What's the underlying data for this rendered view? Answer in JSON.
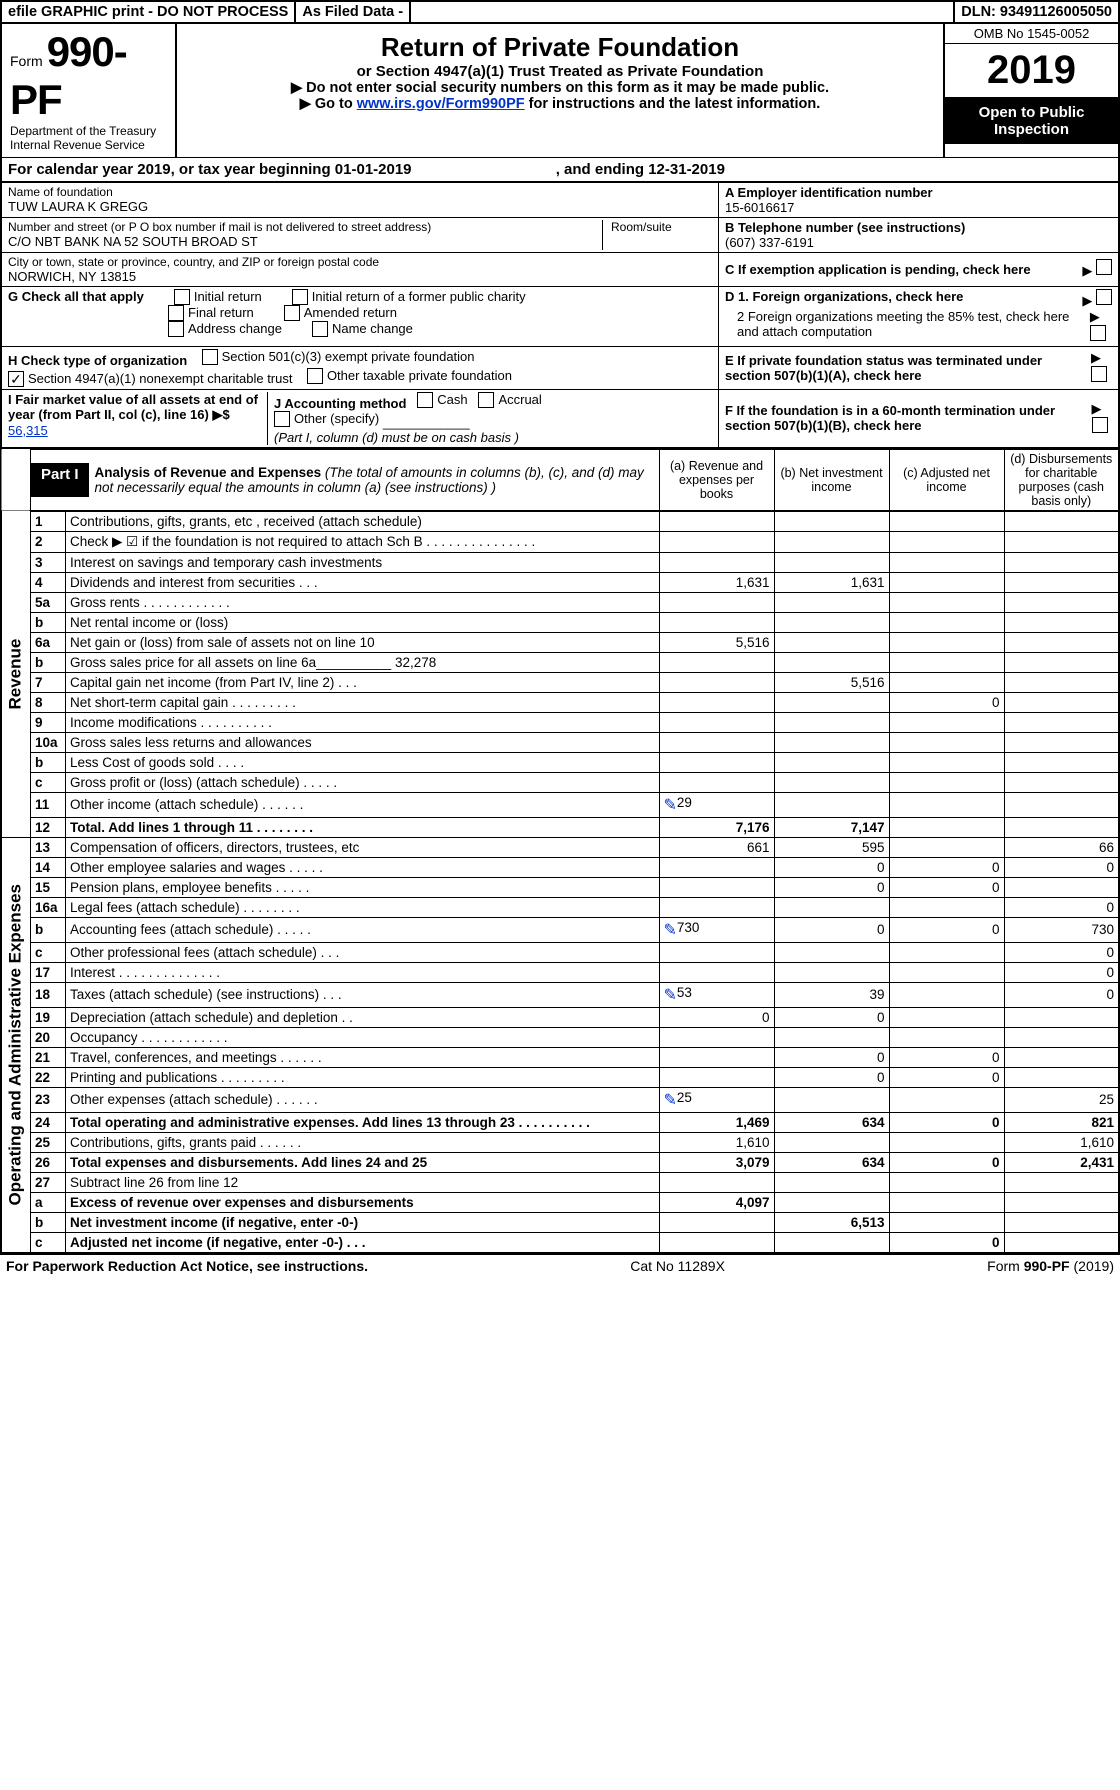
{
  "top": {
    "efile": "efile GRAPHIC print - DO NOT PROCESS",
    "asfiled": "As Filed Data -",
    "dln": "DLN: 93491126005050"
  },
  "header": {
    "form_label": "Form",
    "form_code": "990-PF",
    "dept1": "Department of the Treasury",
    "dept2": "Internal Revenue Service",
    "title": "Return of Private Foundation",
    "subtitle": "or Section 4947(a)(1) Trust Treated as Private Foundation",
    "note1": "▶ Do not enter social security numbers on this form as it may be made public.",
    "note2_pre": "▶ Go to ",
    "note2_link": "www.irs.gov/Form990PF",
    "note2_post": " for instructions and the latest information.",
    "omb": "OMB No 1545-0052",
    "year": "2019",
    "open": "Open to Public Inspection"
  },
  "calyear": {
    "text_a": "For calendar year 2019, or tax year beginning 01-01-2019",
    "text_b": ", and ending 12-31-2019"
  },
  "info": {
    "name_label": "Name of foundation",
    "name": "TUW LAURA K GREGG",
    "ein_label": "A Employer identification number",
    "ein": "15-6016617",
    "addr_label": "Number and street (or P O  box number if mail is not delivered to street address)",
    "addr": "C/O NBT BANK NA 52 SOUTH BROAD ST",
    "room_label": "Room/suite",
    "tel_label": "B Telephone number (see instructions)",
    "tel": "(607) 337-6191",
    "city_label": "City or town, state or province, country, and ZIP or foreign postal code",
    "city": "NORWICH, NY  13815",
    "c_label": "C If exemption application is pending, check here",
    "g_label": "G Check all that apply",
    "g_initial": "Initial return",
    "g_initial_former": "Initial return of a former public charity",
    "g_final": "Final return",
    "g_amended": "Amended return",
    "g_addr": "Address change",
    "g_name": "Name change",
    "d1": "D 1. Foreign organizations, check here",
    "d2": "2 Foreign organizations meeting the 85% test, check here and attach computation",
    "e_label": "E  If private foundation status was terminated under section 507(b)(1)(A), check here",
    "h_label": "H Check type of organization",
    "h_501c3": "Section 501(c)(3) exempt private foundation",
    "h_4947": "Section 4947(a)(1) nonexempt charitable trust",
    "h_other_tax": "Other taxable private foundation",
    "i_label": "I Fair market value of all assets at end of year (from Part II, col  (c), line 16) ▶$ ",
    "i_val": "56,315",
    "j_label": "J Accounting method",
    "j_cash": "Cash",
    "j_accrual": "Accrual",
    "j_other": "Other (specify)",
    "j_note": "(Part I, column (d) must be on cash basis )",
    "f_label": "F  If the foundation is in a 60-month termination under section 507(b)(1)(B), check here"
  },
  "part1": {
    "tag": "Part I",
    "title": "Analysis of Revenue and Expenses",
    "desc": " (The total of amounts in columns (b), (c), and (d) may not necessarily equal the amounts in column (a) (see instructions) )",
    "col_a": "(a) Revenue and expenses per books",
    "col_b": "(b) Net investment income",
    "col_c": "(c) Adjusted net income",
    "col_d": "(d) Disbursements for charitable purposes (cash basis only)"
  },
  "revenue_label": "Revenue",
  "expense_label": "Operating and Administrative Expenses",
  "rows": [
    {
      "n": "1",
      "label": "Contributions, gifts, grants, etc , received (attach schedule)",
      "a": "",
      "b": "",
      "c": "",
      "d": ""
    },
    {
      "n": "2",
      "label": "Check ▶ ☑ if the foundation is not required to attach Sch  B  . . . . . . . . . . . . . . .",
      "a": "",
      "b": "",
      "c": "",
      "d": ""
    },
    {
      "n": "3",
      "label": "Interest on savings and temporary cash investments",
      "a": "",
      "b": "",
      "c": "",
      "d": ""
    },
    {
      "n": "4",
      "label": "Dividends and interest from securities . . .",
      "a": "1,631",
      "b": "1,631",
      "c": "",
      "d": ""
    },
    {
      "n": "5a",
      "label": "Gross rents . . . . . . . . . . . .",
      "a": "",
      "b": "",
      "c": "",
      "d": ""
    },
    {
      "n": "b",
      "label": "Net rental income or (loss)",
      "a": "",
      "b": "",
      "c": "",
      "d": ""
    },
    {
      "n": "6a",
      "label": "Net gain or (loss) from sale of assets not on line 10",
      "a": "5,516",
      "b": "",
      "c": "",
      "d": ""
    },
    {
      "n": "b",
      "label": "Gross sales price for all assets on line 6a__________ 32,278",
      "a": "",
      "b": "",
      "c": "",
      "d": ""
    },
    {
      "n": "7",
      "label": "Capital gain net income (from Part IV, line 2) . . .",
      "a": "",
      "b": "5,516",
      "c": "",
      "d": ""
    },
    {
      "n": "8",
      "label": "Net short-term capital gain . . . . . . . . .",
      "a": "",
      "b": "",
      "c": "0",
      "d": ""
    },
    {
      "n": "9",
      "label": "Income modifications . . . . . . . . . .",
      "a": "",
      "b": "",
      "c": "",
      "d": ""
    },
    {
      "n": "10a",
      "label": "Gross sales less returns and allowances",
      "a": "",
      "b": "",
      "c": "",
      "d": ""
    },
    {
      "n": "b",
      "label": "Less  Cost of goods sold . . . .",
      "a": "",
      "b": "",
      "c": "",
      "d": ""
    },
    {
      "n": "c",
      "label": "Gross profit or (loss) (attach schedule) . . . . .",
      "a": "",
      "b": "",
      "c": "",
      "d": ""
    },
    {
      "n": "11",
      "label": "Other income (attach schedule) . . . . . .",
      "a": "29",
      "b": "",
      "c": "",
      "d": "",
      "icon": true
    },
    {
      "n": "12",
      "label": "Total. Add lines 1 through 11 . . . . . . . .",
      "a": "7,176",
      "b": "7,147",
      "c": "",
      "d": "",
      "bold": true
    }
  ],
  "exp_rows": [
    {
      "n": "13",
      "label": "Compensation of officers, directors, trustees, etc",
      "a": "661",
      "b": "595",
      "c": "",
      "d": "66"
    },
    {
      "n": "14",
      "label": "Other employee salaries and wages . . . . .",
      "a": "",
      "b": "0",
      "c": "0",
      "d": "0"
    },
    {
      "n": "15",
      "label": "Pension plans, employee benefits . . . . .",
      "a": "",
      "b": "0",
      "c": "0",
      "d": ""
    },
    {
      "n": "16a",
      "label": "Legal fees (attach schedule) . . . . . . . .",
      "a": "",
      "b": "",
      "c": "",
      "d": "0"
    },
    {
      "n": "b",
      "label": "Accounting fees (attach schedule) . . . . .",
      "a": "730",
      "b": "0",
      "c": "0",
      "d": "730",
      "icon": true
    },
    {
      "n": "c",
      "label": "Other professional fees (attach schedule) . . .",
      "a": "",
      "b": "",
      "c": "",
      "d": "0"
    },
    {
      "n": "17",
      "label": "Interest . . . . . . . . . . . . . .",
      "a": "",
      "b": "",
      "c": "",
      "d": "0"
    },
    {
      "n": "18",
      "label": "Taxes (attach schedule) (see instructions) . . .",
      "a": "53",
      "b": "39",
      "c": "",
      "d": "0",
      "icon": true
    },
    {
      "n": "19",
      "label": "Depreciation (attach schedule) and depletion . .",
      "a": "0",
      "b": "0",
      "c": "",
      "d": ""
    },
    {
      "n": "20",
      "label": "Occupancy . . . . . . . . . . . .",
      "a": "",
      "b": "",
      "c": "",
      "d": ""
    },
    {
      "n": "21",
      "label": "Travel, conferences, and meetings . . . . . .",
      "a": "",
      "b": "0",
      "c": "0",
      "d": ""
    },
    {
      "n": "22",
      "label": "Printing and publications . . . . . . . . .",
      "a": "",
      "b": "0",
      "c": "0",
      "d": ""
    },
    {
      "n": "23",
      "label": "Other expenses (attach schedule) . . . . . .",
      "a": "25",
      "b": "",
      "c": "",
      "d": "25",
      "icon": true
    },
    {
      "n": "24",
      "label": "Total operating and administrative expenses. Add lines 13 through 23 . . . . . . . . . .",
      "a": "1,469",
      "b": "634",
      "c": "0",
      "d": "821",
      "bold": true
    },
    {
      "n": "25",
      "label": "Contributions, gifts, grants paid . . . . . .",
      "a": "1,610",
      "b": "",
      "c": "",
      "d": "1,610"
    },
    {
      "n": "26",
      "label": "Total expenses and disbursements. Add lines 24 and 25",
      "a": "3,079",
      "b": "634",
      "c": "0",
      "d": "2,431",
      "bold": true
    },
    {
      "n": "27",
      "label": "Subtract line 26 from line 12",
      "a": "",
      "b": "",
      "c": "",
      "d": ""
    },
    {
      "n": "a",
      "label": "Excess of revenue over expenses and disbursements",
      "a": "4,097",
      "b": "",
      "c": "",
      "d": "",
      "bold": true
    },
    {
      "n": "b",
      "label": "Net investment income (if negative, enter -0-)",
      "a": "",
      "b": "6,513",
      "c": "",
      "d": "",
      "bold": true
    },
    {
      "n": "c",
      "label": "Adjusted net income (if negative, enter -0-) . . .",
      "a": "",
      "b": "",
      "c": "0",
      "d": "",
      "bold": true
    }
  ],
  "footer": {
    "left": "For Paperwork Reduction Act Notice, see instructions.",
    "mid": "Cat  No  11289X",
    "right": "Form 990-PF (2019)"
  }
}
